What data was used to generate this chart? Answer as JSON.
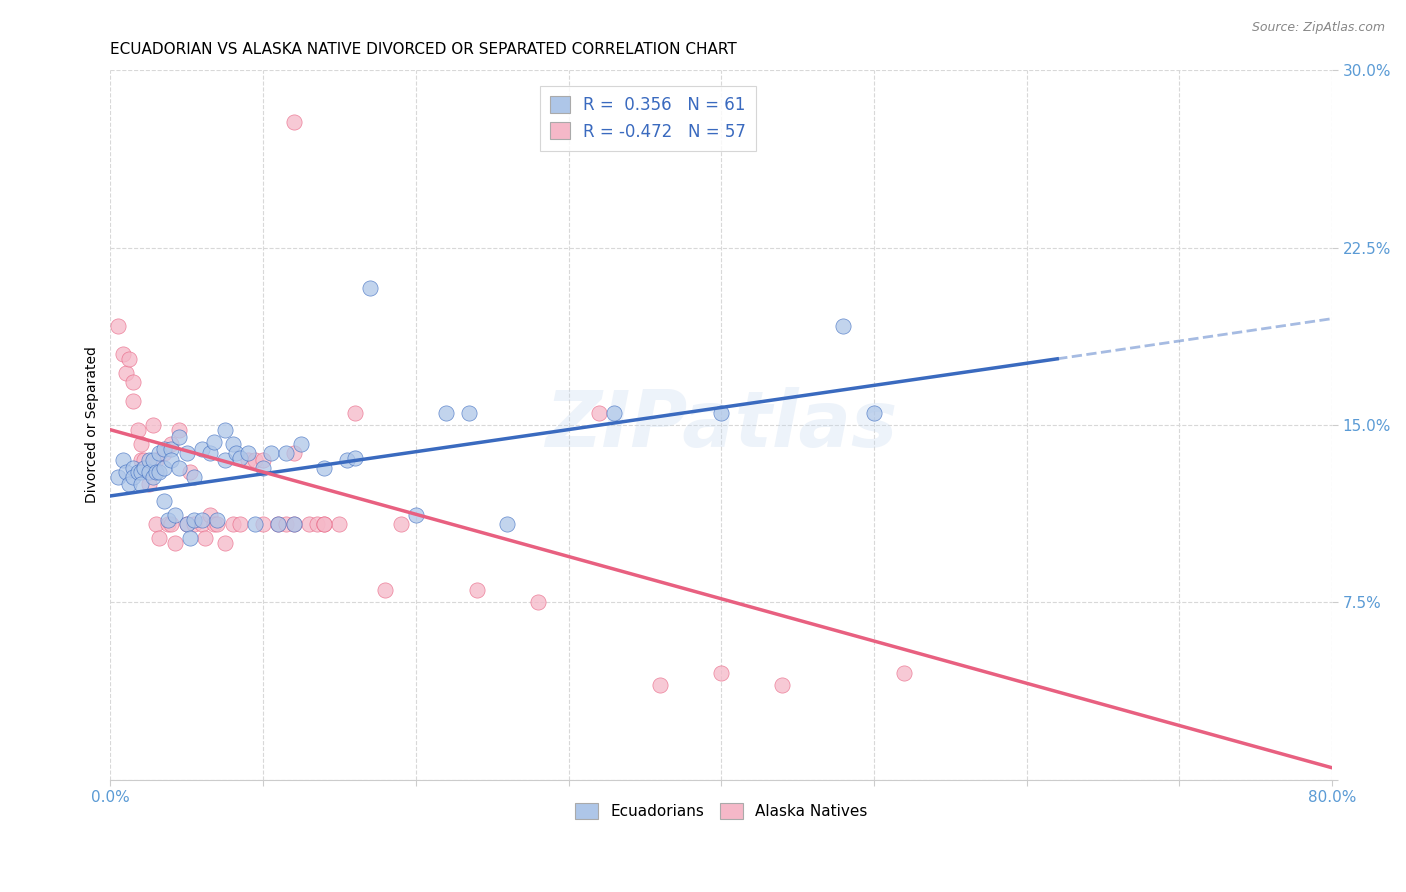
{
  "title": "ECUADORIAN VS ALASKA NATIVE DIVORCED OR SEPARATED CORRELATION CHART",
  "source": "Source: ZipAtlas.com",
  "ylabel": "Divorced or Separated",
  "watermark": "ZIPatlas",
  "xmin": 0.0,
  "xmax": 0.8,
  "ymin": 0.0,
  "ymax": 0.3,
  "yticks": [
    0.0,
    0.075,
    0.15,
    0.225,
    0.3
  ],
  "ytick_labels": [
    "",
    "7.5%",
    "15.0%",
    "22.5%",
    "30.0%"
  ],
  "xticks": [
    0.0,
    0.1,
    0.2,
    0.3,
    0.4,
    0.5,
    0.6,
    0.7,
    0.8
  ],
  "xtick_labels": [
    "0.0%",
    "",
    "",
    "",
    "",
    "",
    "",
    "",
    "80.0%"
  ],
  "blue_R": 0.356,
  "blue_N": 61,
  "pink_R": -0.472,
  "pink_N": 57,
  "blue_color": "#aec6e8",
  "pink_color": "#f5b8c8",
  "blue_line_color": "#3a6abf",
  "pink_line_color": "#e86080",
  "blue_scatter": [
    [
      0.005,
      0.128
    ],
    [
      0.008,
      0.135
    ],
    [
      0.01,
      0.13
    ],
    [
      0.012,
      0.125
    ],
    [
      0.015,
      0.132
    ],
    [
      0.015,
      0.128
    ],
    [
      0.018,
      0.13
    ],
    [
      0.02,
      0.13
    ],
    [
      0.02,
      0.125
    ],
    [
      0.022,
      0.132
    ],
    [
      0.025,
      0.135
    ],
    [
      0.025,
      0.13
    ],
    [
      0.028,
      0.135
    ],
    [
      0.028,
      0.128
    ],
    [
      0.03,
      0.13
    ],
    [
      0.032,
      0.138
    ],
    [
      0.032,
      0.13
    ],
    [
      0.035,
      0.14
    ],
    [
      0.035,
      0.132
    ],
    [
      0.035,
      0.118
    ],
    [
      0.038,
      0.11
    ],
    [
      0.04,
      0.14
    ],
    [
      0.04,
      0.135
    ],
    [
      0.042,
      0.112
    ],
    [
      0.045,
      0.145
    ],
    [
      0.045,
      0.132
    ],
    [
      0.05,
      0.138
    ],
    [
      0.05,
      0.108
    ],
    [
      0.052,
      0.102
    ],
    [
      0.055,
      0.128
    ],
    [
      0.055,
      0.11
    ],
    [
      0.06,
      0.14
    ],
    [
      0.06,
      0.11
    ],
    [
      0.065,
      0.138
    ],
    [
      0.068,
      0.143
    ],
    [
      0.07,
      0.11
    ],
    [
      0.075,
      0.148
    ],
    [
      0.075,
      0.135
    ],
    [
      0.08,
      0.142
    ],
    [
      0.082,
      0.138
    ],
    [
      0.085,
      0.136
    ],
    [
      0.09,
      0.138
    ],
    [
      0.095,
      0.108
    ],
    [
      0.1,
      0.132
    ],
    [
      0.105,
      0.138
    ],
    [
      0.11,
      0.108
    ],
    [
      0.115,
      0.138
    ],
    [
      0.12,
      0.108
    ],
    [
      0.125,
      0.142
    ],
    [
      0.14,
      0.132
    ],
    [
      0.155,
      0.135
    ],
    [
      0.16,
      0.136
    ],
    [
      0.17,
      0.208
    ],
    [
      0.2,
      0.112
    ],
    [
      0.22,
      0.155
    ],
    [
      0.235,
      0.155
    ],
    [
      0.26,
      0.108
    ],
    [
      0.33,
      0.155
    ],
    [
      0.4,
      0.155
    ],
    [
      0.5,
      0.155
    ],
    [
      0.48,
      0.192
    ]
  ],
  "pink_scatter": [
    [
      0.005,
      0.192
    ],
    [
      0.008,
      0.18
    ],
    [
      0.01,
      0.172
    ],
    [
      0.012,
      0.178
    ],
    [
      0.015,
      0.168
    ],
    [
      0.015,
      0.16
    ],
    [
      0.018,
      0.148
    ],
    [
      0.02,
      0.142
    ],
    [
      0.02,
      0.135
    ],
    [
      0.022,
      0.135
    ],
    [
      0.025,
      0.13
    ],
    [
      0.025,
      0.125
    ],
    [
      0.028,
      0.15
    ],
    [
      0.03,
      0.135
    ],
    [
      0.03,
      0.108
    ],
    [
      0.032,
      0.102
    ],
    [
      0.035,
      0.138
    ],
    [
      0.038,
      0.108
    ],
    [
      0.04,
      0.142
    ],
    [
      0.04,
      0.108
    ],
    [
      0.042,
      0.1
    ],
    [
      0.045,
      0.148
    ],
    [
      0.05,
      0.108
    ],
    [
      0.052,
      0.13
    ],
    [
      0.055,
      0.108
    ],
    [
      0.06,
      0.108
    ],
    [
      0.062,
      0.102
    ],
    [
      0.065,
      0.112
    ],
    [
      0.068,
      0.108
    ],
    [
      0.07,
      0.108
    ],
    [
      0.075,
      0.1
    ],
    [
      0.08,
      0.108
    ],
    [
      0.085,
      0.108
    ],
    [
      0.09,
      0.135
    ],
    [
      0.095,
      0.135
    ],
    [
      0.1,
      0.135
    ],
    [
      0.1,
      0.108
    ],
    [
      0.11,
      0.108
    ],
    [
      0.115,
      0.108
    ],
    [
      0.12,
      0.138
    ],
    [
      0.12,
      0.108
    ],
    [
      0.13,
      0.108
    ],
    [
      0.135,
      0.108
    ],
    [
      0.14,
      0.108
    ],
    [
      0.15,
      0.108
    ],
    [
      0.12,
      0.278
    ],
    [
      0.14,
      0.108
    ],
    [
      0.16,
      0.155
    ],
    [
      0.18,
      0.08
    ],
    [
      0.19,
      0.108
    ],
    [
      0.24,
      0.08
    ],
    [
      0.28,
      0.075
    ],
    [
      0.32,
      0.155
    ],
    [
      0.36,
      0.04
    ],
    [
      0.4,
      0.045
    ],
    [
      0.44,
      0.04
    ],
    [
      0.52,
      0.045
    ]
  ],
  "blue_line": [
    [
      0.0,
      0.12
    ],
    [
      0.62,
      0.178
    ]
  ],
  "pink_line": [
    [
      0.0,
      0.148
    ],
    [
      0.8,
      0.005
    ]
  ],
  "blue_dash_line": [
    [
      0.62,
      0.178
    ],
    [
      0.8,
      0.195
    ]
  ],
  "background_color": "#ffffff",
  "grid_color": "#d8d8d8",
  "title_fontsize": 11,
  "tick_label_color": "#5b9bd5"
}
